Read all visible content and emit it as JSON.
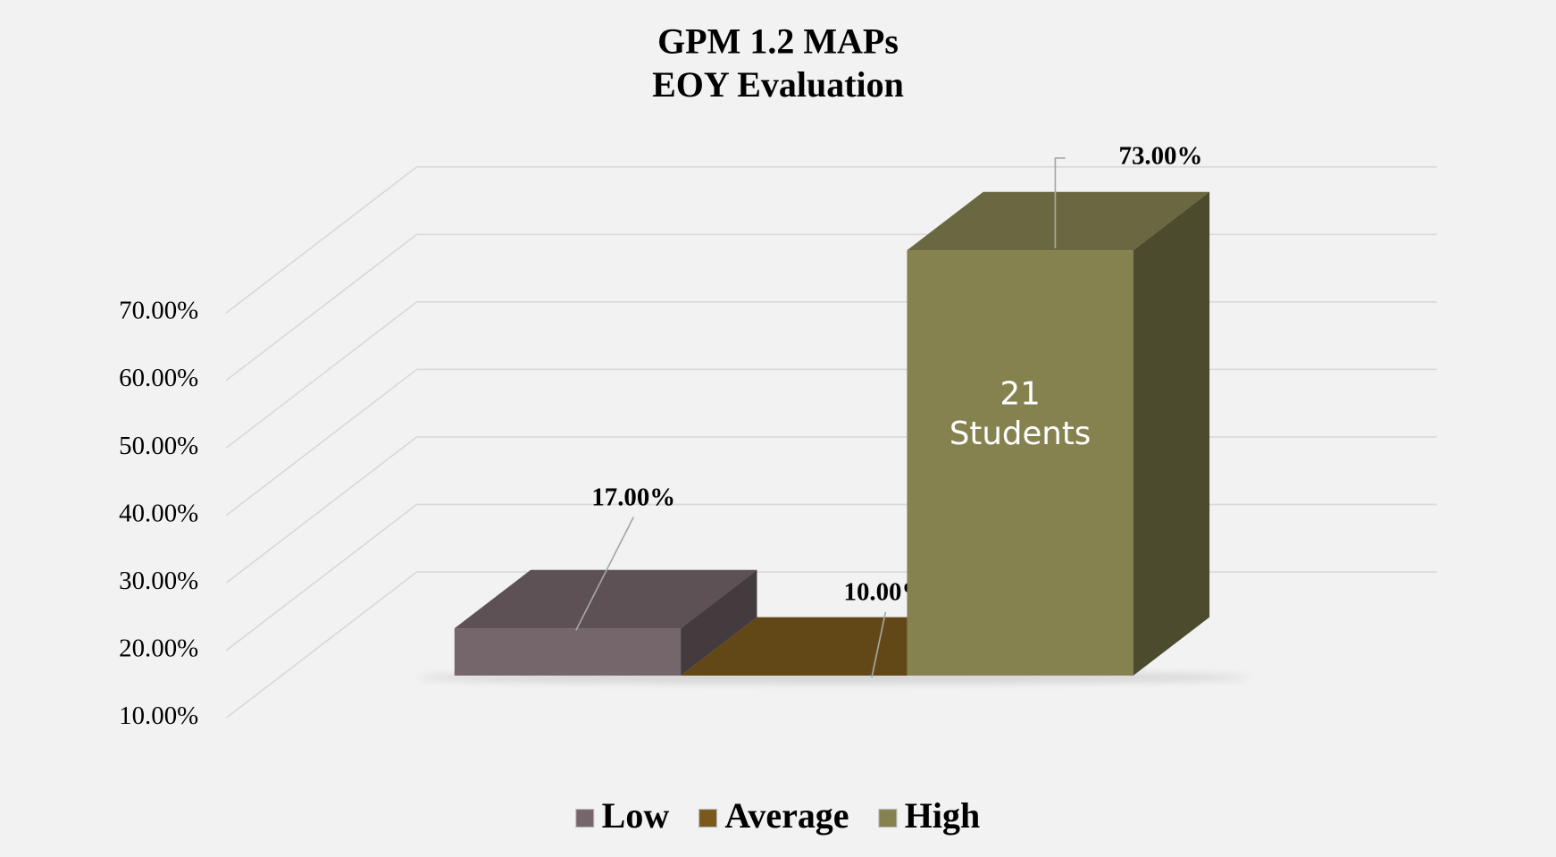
{
  "chart_data": {
    "type": "bar3d",
    "title": "GPM 1.2 MAPs",
    "subtitle": "EOY Evaluation",
    "categories": [
      "Low",
      "Average",
      "High"
    ],
    "values": [
      17,
      10,
      73
    ],
    "value_labels": [
      "17.00%",
      "10.00%",
      "73.00%"
    ],
    "colors": [
      "#75666c",
      "#7a5a1c",
      "#858250"
    ],
    "ylim": [
      10,
      70
    ],
    "yticks": [
      {
        "value": 10,
        "label": "10.00%"
      },
      {
        "value": 20,
        "label": "20.00%"
      },
      {
        "value": 30,
        "label": "30.00%"
      },
      {
        "value": 40,
        "label": "40.00%"
      },
      {
        "value": 50,
        "label": "50.00%"
      },
      {
        "value": 60,
        "label": "60.00%"
      },
      {
        "value": 70,
        "label": "70.00%"
      }
    ],
    "annotation": [
      "21",
      "Students"
    ],
    "grid": true,
    "legend": "bottom"
  }
}
